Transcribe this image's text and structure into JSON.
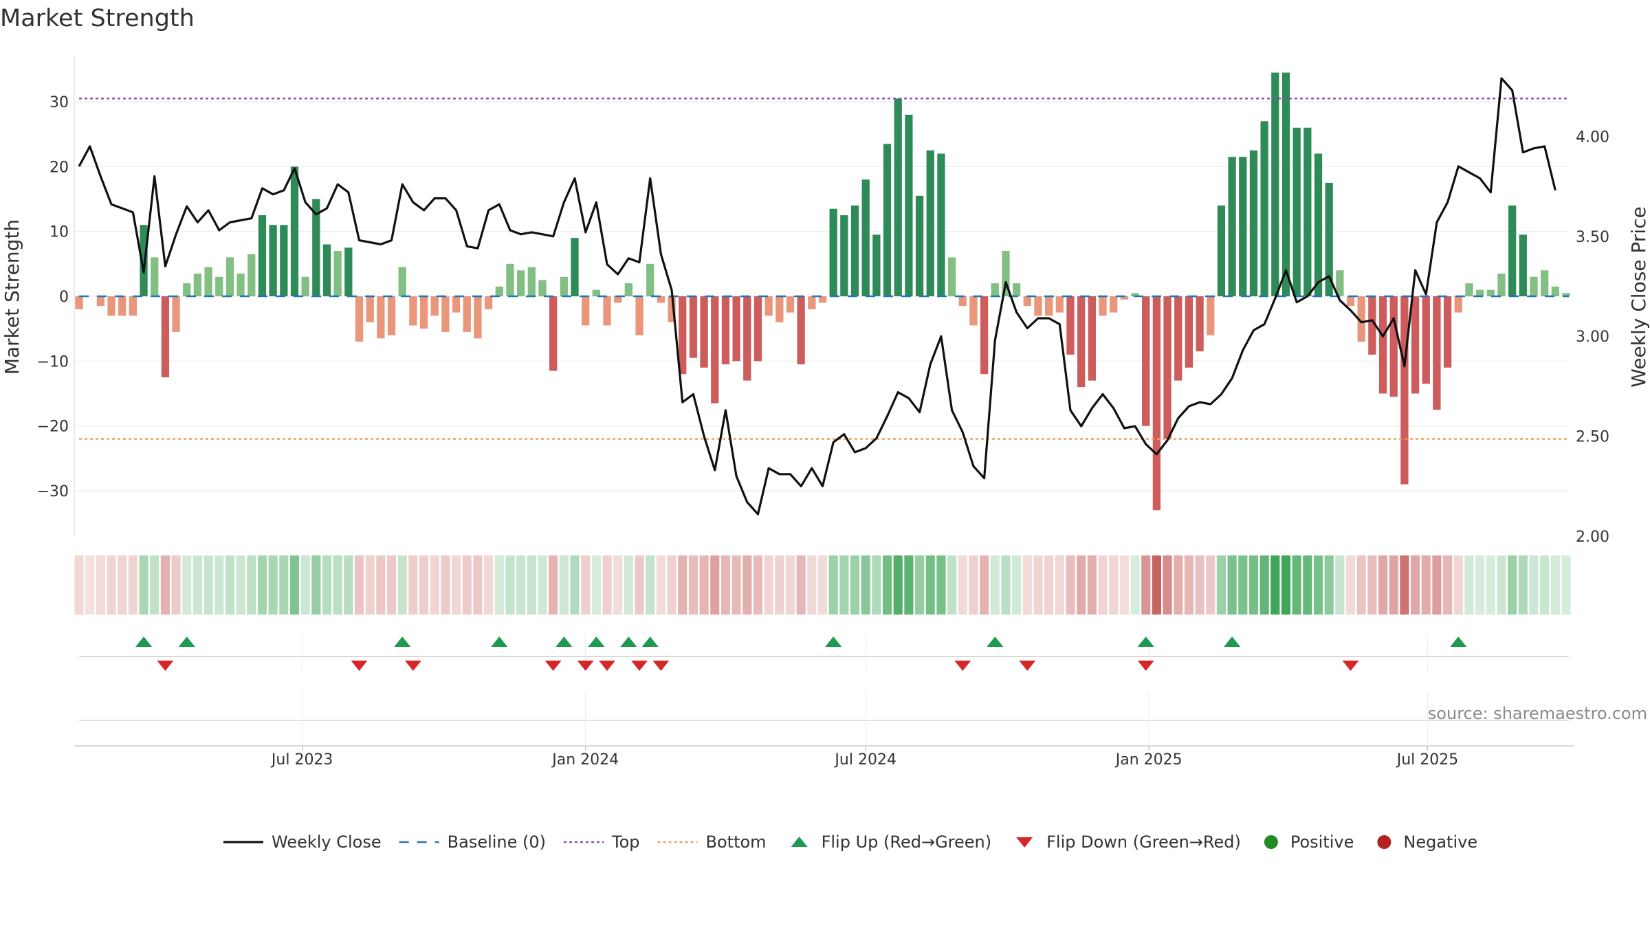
{
  "chart_data": {
    "type": "bar",
    "title": "Market Strength",
    "ylabel_left": "Market Strength",
    "ylabel_right": "Weekly Close Price",
    "source": "source: sharemaestro.com",
    "ylim_left": [
      -37,
      37
    ],
    "ylim_right": [
      2.0,
      4.4
    ],
    "yticks_left": [
      {
        "v": 30,
        "label": "30"
      },
      {
        "v": 20,
        "label": "20"
      },
      {
        "v": 10,
        "label": "10"
      },
      {
        "v": 0,
        "label": "0"
      },
      {
        "v": -10,
        "label": "−10"
      },
      {
        "v": -20,
        "label": "−20"
      },
      {
        "v": -30,
        "label": "−30"
      }
    ],
    "yticks_right": [
      {
        "v": 4.0,
        "label": "4.00"
      },
      {
        "v": 3.5,
        "label": "3.50"
      },
      {
        "v": 3.0,
        "label": "3.00"
      },
      {
        "v": 2.5,
        "label": "2.50"
      },
      {
        "v": 2.0,
        "label": "2.00"
      }
    ],
    "x_start": "2023-02-06",
    "x_end": "2025-09-29",
    "xticks": [
      {
        "date": "2023-07-01",
        "label": "Jul 2023"
      },
      {
        "date": "2024-01-01",
        "label": "Jan 2024"
      },
      {
        "date": "2024-07-01",
        "label": "Jul 2024"
      },
      {
        "date": "2025-01-01",
        "label": "Jan 2025"
      },
      {
        "date": "2025-07-01",
        "label": "Jul 2025"
      }
    ],
    "top_level": 30.5,
    "bottom_level": -22,
    "strength": [
      -2,
      0,
      -1.5,
      -3,
      -3,
      -3,
      11,
      6,
      -12.5,
      -5.5,
      2,
      3.5,
      4.5,
      3,
      6,
      3.5,
      6.5,
      12.5,
      11,
      11,
      20,
      3,
      15,
      8,
      7,
      7.5,
      -7,
      -4,
      -6.5,
      -6,
      4.5,
      -4.5,
      -5,
      -3,
      -5.5,
      -2.5,
      -5.5,
      -6.5,
      -2,
      1.5,
      5,
      4,
      4.5,
      2.5,
      -11.5,
      3,
      9,
      -4.5,
      1,
      -4.5,
      -1,
      2,
      -6,
      5,
      -1,
      -4,
      -12,
      -9.5,
      -11,
      -16.5,
      -10.5,
      -10,
      -13,
      -10,
      -3,
      -4,
      -2.5,
      -10.5,
      -2,
      -1,
      13.5,
      12.5,
      14,
      18,
      9.5,
      23.5,
      30.5,
      28,
      15.5,
      22.5,
      22,
      6,
      -1.5,
      -4.5,
      -12,
      2,
      7,
      2,
      -1.5,
      -3,
      -3,
      -2.5,
      -9,
      -14,
      -13,
      -3,
      -2.5,
      -0.5,
      0.5,
      -20,
      -33,
      -22,
      -13,
      -11,
      -8.5,
      -6,
      14,
      21.5,
      21.5,
      22.5,
      27,
      34.5,
      34.5,
      26,
      26,
      22,
      17.5,
      4,
      -1.5,
      -7,
      -9,
      -15,
      -15.5,
      -29,
      -15,
      -13.5,
      -17.5,
      -11,
      -2.5,
      2,
      1,
      1,
      3.5,
      14,
      9.5,
      3,
      4,
      1.5,
      0.5
    ],
    "close": [
      3.85,
      3.95,
      3.8,
      3.66,
      3.64,
      3.62,
      3.32,
      3.8,
      3.35,
      3.51,
      3.65,
      3.57,
      3.63,
      3.53,
      3.57,
      3.58,
      3.59,
      3.74,
      3.71,
      3.73,
      3.84,
      3.67,
      3.61,
      3.64,
      3.76,
      3.72,
      3.48,
      3.47,
      3.46,
      3.48,
      3.76,
      3.67,
      3.63,
      3.69,
      3.69,
      3.63,
      3.45,
      3.44,
      3.63,
      3.66,
      3.53,
      3.51,
      3.52,
      3.51,
      3.5,
      3.67,
      3.79,
      3.52,
      3.67,
      3.36,
      3.31,
      3.39,
      3.37,
      3.79,
      3.41,
      3.23,
      2.67,
      2.71,
      2.5,
      2.33,
      2.63,
      2.3,
      2.17,
      2.11,
      2.34,
      2.31,
      2.31,
      2.25,
      2.34,
      2.25,
      2.47,
      2.51,
      2.42,
      2.44,
      2.49,
      2.6,
      2.72,
      2.69,
      2.62,
      2.86,
      3.0,
      2.63,
      2.52,
      2.35,
      2.29,
      2.98,
      3.27,
      3.12,
      3.04,
      3.09,
      3.09,
      3.06,
      2.63,
      2.55,
      2.64,
      2.71,
      2.64,
      2.54,
      2.55,
      2.46,
      2.41,
      2.48,
      2.59,
      2.65,
      2.67,
      2.66,
      2.71,
      2.79,
      2.93,
      3.03,
      3.06,
      3.19,
      3.33,
      3.17,
      3.2,
      3.27,
      3.3,
      3.18,
      3.13,
      3.07,
      3.08,
      3.0,
      3.09,
      2.85,
      3.33,
      3.21,
      3.57,
      3.67,
      3.85,
      3.82,
      3.79,
      3.72,
      4.29,
      4.23,
      3.92,
      3.94,
      3.95,
      3.73
    ],
    "flip_up_weeks": [
      6,
      10,
      30,
      39,
      45,
      48,
      51,
      53,
      70,
      85,
      99,
      107,
      128
    ],
    "flip_down_weeks": [
      8,
      26,
      31,
      44,
      47,
      49,
      52,
      54,
      82,
      88,
      99,
      118
    ],
    "colors": {
      "bar_pos_strong": "#2e8b57",
      "bar_pos_weak": "#82bf82",
      "bar_neg_strong": "#cd5c5c",
      "bar_neg_weak": "#e9967a",
      "line": "#111111",
      "baseline": "#1f77b4",
      "top": "#8a4fc6",
      "bottom": "#f0a060",
      "flip_up": "#1e9a50",
      "flip_down": "#d62728",
      "positive": "#228b22",
      "negative": "#b22222"
    },
    "legend": [
      {
        "key": "line",
        "label": "Weekly Close"
      },
      {
        "key": "baseline",
        "label": "Baseline (0)"
      },
      {
        "key": "top",
        "label": "Top"
      },
      {
        "key": "bottom",
        "label": "Bottom"
      },
      {
        "key": "flip_up",
        "label": "Flip Up (Red→Green)"
      },
      {
        "key": "flip_down",
        "label": "Flip Down (Green→Red)"
      },
      {
        "key": "positive",
        "label": "Positive"
      },
      {
        "key": "negative",
        "label": "Negative"
      }
    ]
  }
}
